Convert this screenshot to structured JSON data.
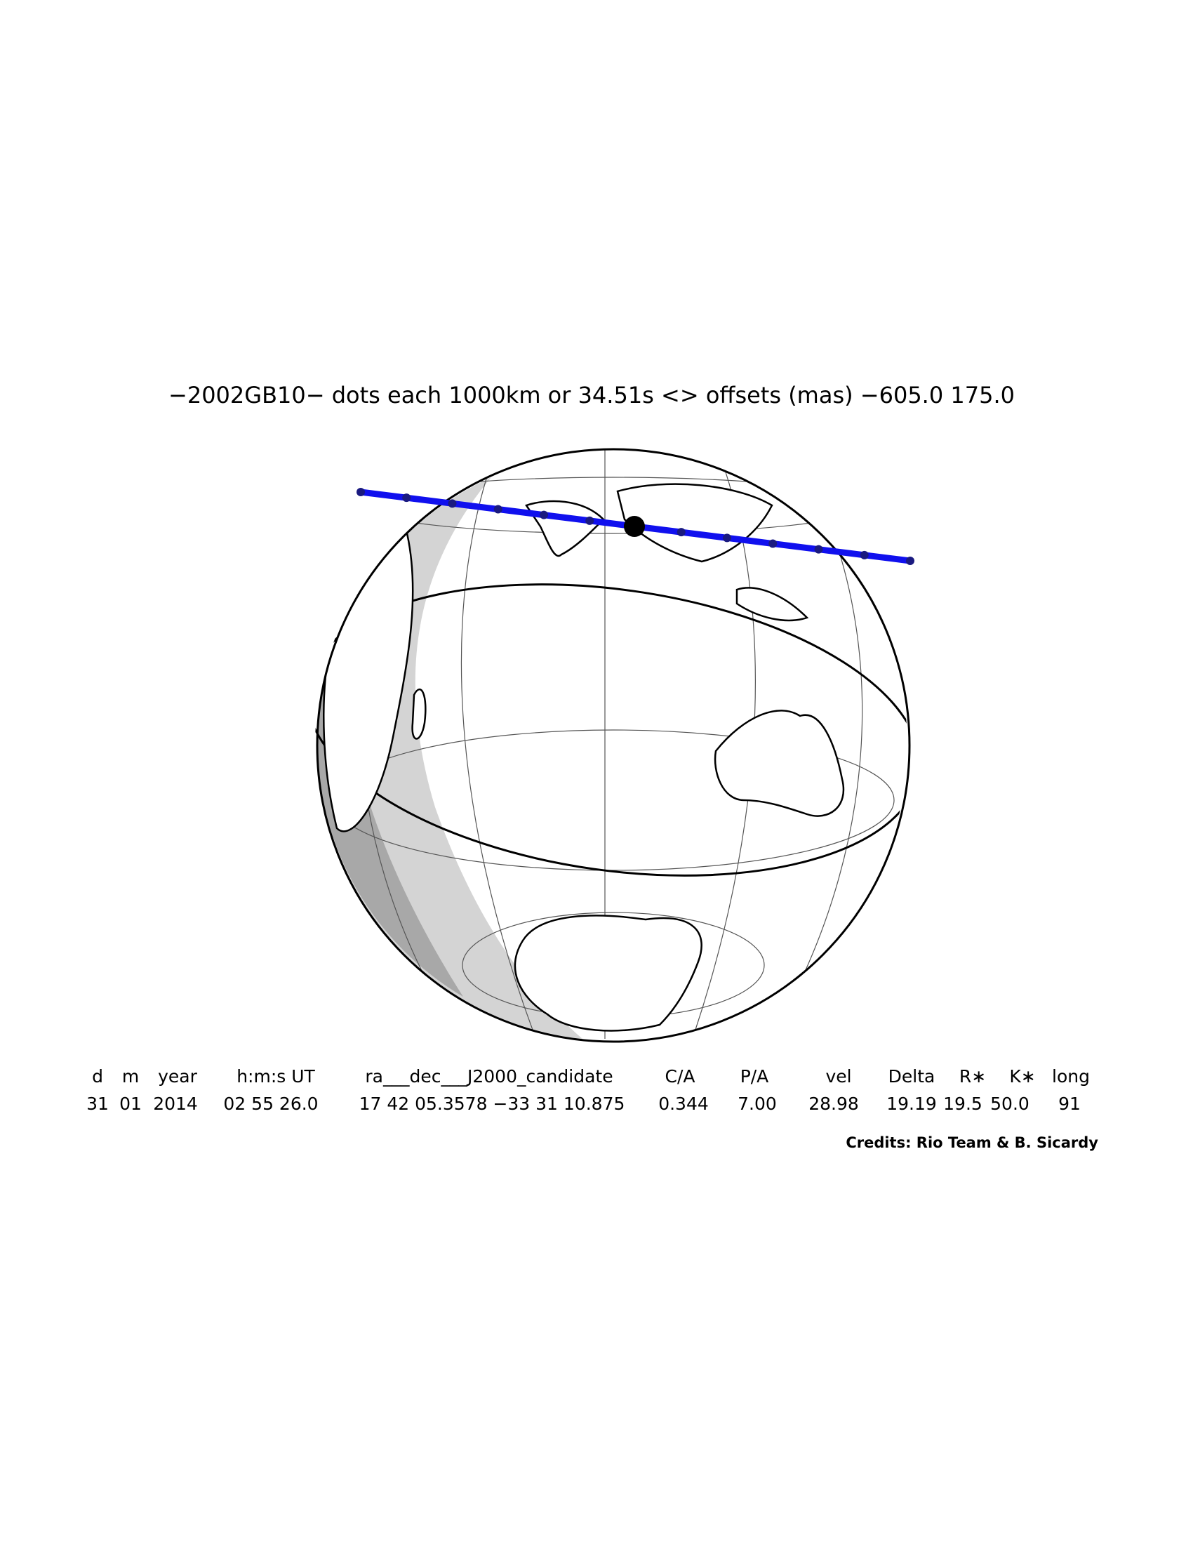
{
  "title": "−2002GB10− dots each 1000km or 34.51s <> offsets (mas) −605.0   175.0",
  "table": {
    "headers": [
      "d",
      "m",
      "year",
      "h:m:s UT",
      "ra___dec___J2000_candidate",
      "C/A",
      "P/A",
      "vel",
      "Delta",
      "R∗",
      "K∗",
      "long"
    ],
    "values": [
      "31",
      "01",
      "2014",
      "02 55 26.0",
      "17 42 05.3578 −33 31 10.875",
      "0.344",
      "7.00",
      "28.98",
      "19.19",
      "19.5",
      "50.0",
      "91"
    ]
  },
  "credits": "Credits: Rio Team & B. Sicardy"
}
